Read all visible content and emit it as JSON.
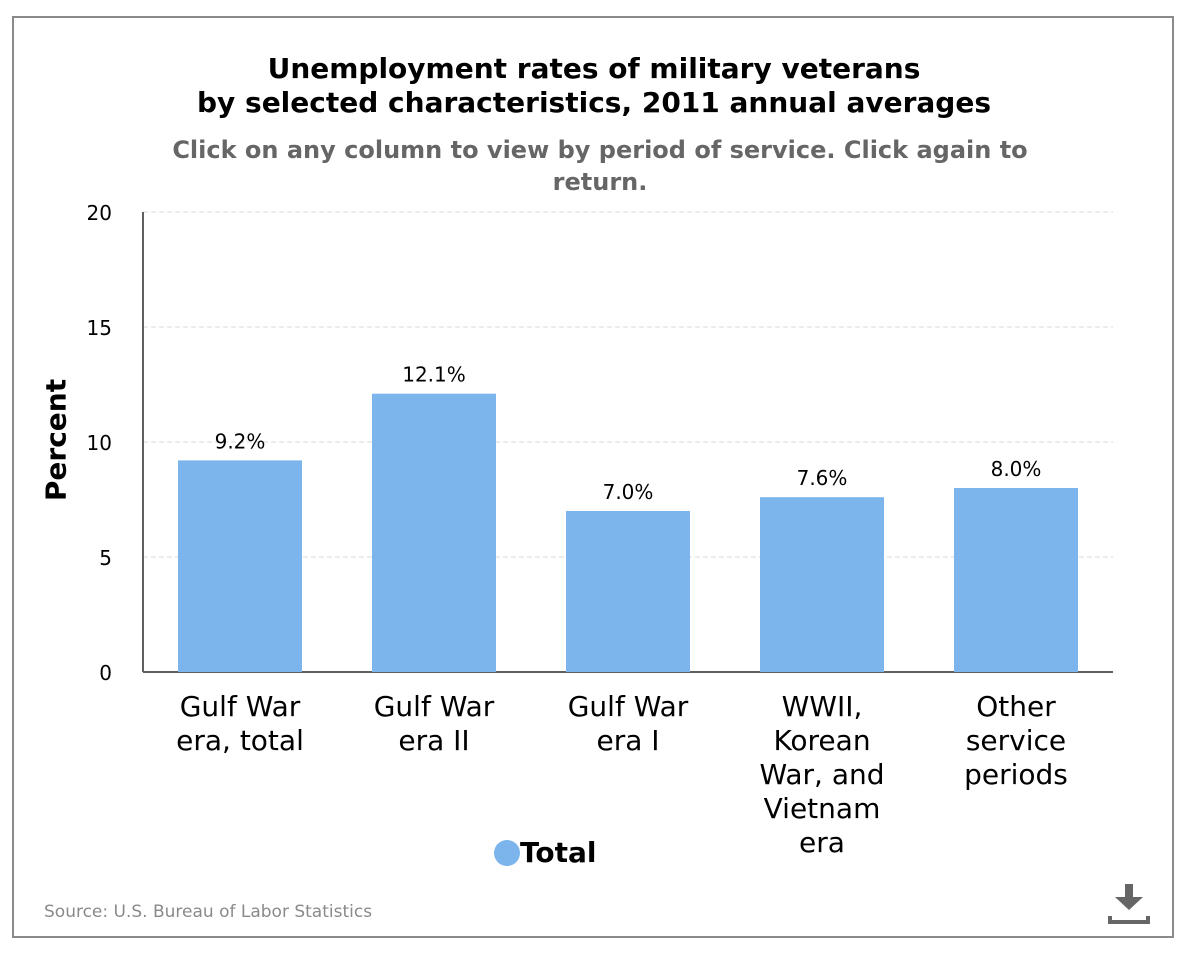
{
  "chart_data": {
    "type": "bar",
    "title_lines": [
      "Unemployment rates of military veterans",
      "by selected characteristics, 2011 annual averages"
    ],
    "subtitle_lines": [
      "Click on any column to view by period of service. Click again to",
      "return."
    ],
    "ylabel": "Percent",
    "xlabel": "",
    "ylim": [
      0,
      20
    ],
    "yticks": [
      "0",
      "5",
      "10",
      "15",
      "20"
    ],
    "grid": true,
    "legend_position": "bottom-center",
    "categories": [
      [
        "Gulf War",
        "era, total"
      ],
      [
        "Gulf War",
        "era II"
      ],
      [
        "Gulf War",
        "era I"
      ],
      [
        "WWII,",
        "Korean",
        "War, and",
        "Vietnam",
        "era"
      ],
      [
        "Other",
        "service",
        "periods"
      ]
    ],
    "series": [
      {
        "name": "Total",
        "values": [
          9.2,
          12.1,
          7.0,
          7.6,
          8.0
        ],
        "labels": [
          "9.2%",
          "12.1%",
          "7.0%",
          "7.6%",
          "8.0%"
        ]
      }
    ],
    "colors": {
      "bar": "#7cb5ec",
      "grid": "#d8d8d8",
      "axis": "#606060"
    }
  },
  "footer": {
    "source": "Source: U.S. Bureau of Labor Statistics",
    "download_icon": "download-icon"
  }
}
